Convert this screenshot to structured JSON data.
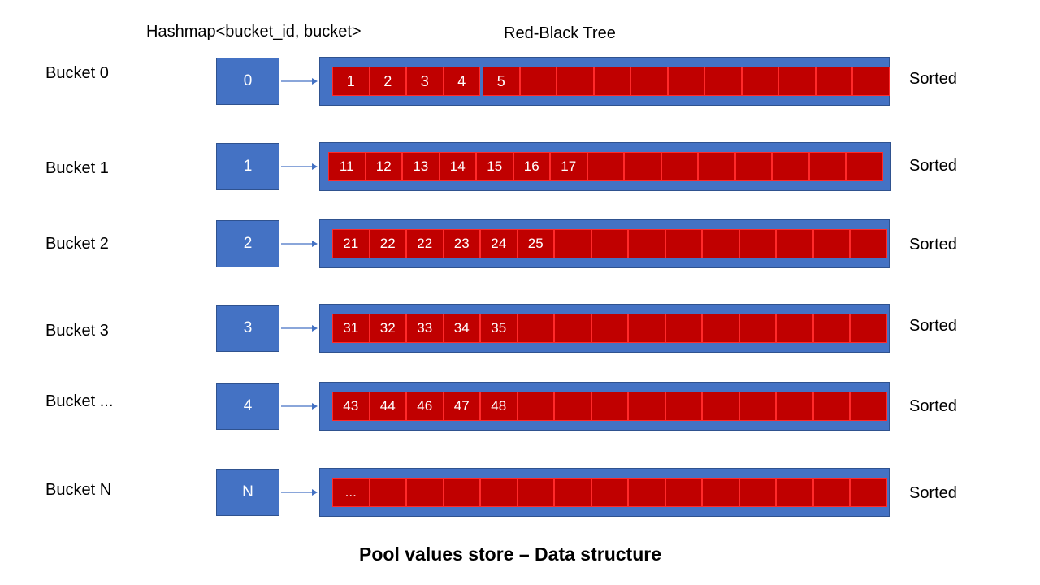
{
  "headers": {
    "hashmap": "Hashmap<bucket_id, bucket>",
    "tree": "Red-Black Tree"
  },
  "rows": [
    {
      "label": "Bucket 0",
      "key": "0",
      "values": [
        "1",
        "2",
        "3",
        "4",
        "5",
        "",
        "",
        "",
        "",
        "",
        "",
        "",
        "",
        "",
        ""
      ],
      "status": "Sorted"
    },
    {
      "label": "Bucket 1",
      "key": "1",
      "values": [
        "11",
        "12",
        "13",
        "14",
        "15",
        "16",
        "17",
        "",
        "",
        "",
        "",
        "",
        "",
        "",
        ""
      ],
      "status": "Sorted"
    },
    {
      "label": "Bucket 2",
      "key": "2",
      "values": [
        "21",
        "22",
        "22",
        "23",
        "24",
        "25",
        "",
        "",
        "",
        "",
        "",
        "",
        "",
        "",
        ""
      ],
      "status": "Sorted"
    },
    {
      "label": "Bucket 3",
      "key": "3",
      "values": [
        "31",
        "32",
        "33",
        "34",
        "35",
        "",
        "",
        "",
        "",
        "",
        "",
        "",
        "",
        "",
        ""
      ],
      "status": "Sorted"
    },
    {
      "label": "Bucket ...",
      "key": "4",
      "values": [
        "43",
        "44",
        "46",
        "47",
        "48",
        "",
        "",
        "",
        "",
        "",
        "",
        "",
        "",
        "",
        ""
      ],
      "status": "Sorted"
    },
    {
      "label": "Bucket N",
      "key": "N",
      "values": [
        "...",
        "",
        "",
        "",
        "",
        "",
        "",
        "",
        "",
        "",
        "",
        "",
        "",
        "",
        ""
      ],
      "status": "Sorted"
    }
  ],
  "caption": "Pool values store – Data structure",
  "colors": {
    "box_blue": "#4472c4",
    "cell_red": "#c00000",
    "cell_border": "#ff2a2a",
    "arrow": "#4472c4"
  }
}
